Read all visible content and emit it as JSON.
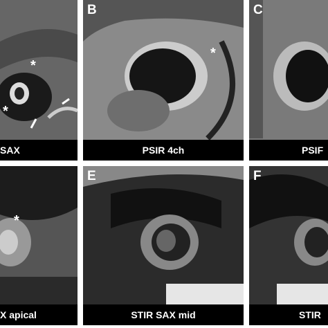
{
  "panels": [
    {
      "caption": "SAX",
      "annotations": [
        "*",
        "*"
      ]
    },
    {
      "label": "B",
      "caption": "PSIR 4ch",
      "annotations": [
        "*"
      ]
    },
    {
      "label": "C",
      "caption": "PSIF"
    },
    {
      "caption": "X apical",
      "annotations": [
        "*"
      ]
    },
    {
      "label": "E",
      "caption": "STIR SAX mid"
    },
    {
      "label": "F",
      "caption": "STIR"
    }
  ]
}
